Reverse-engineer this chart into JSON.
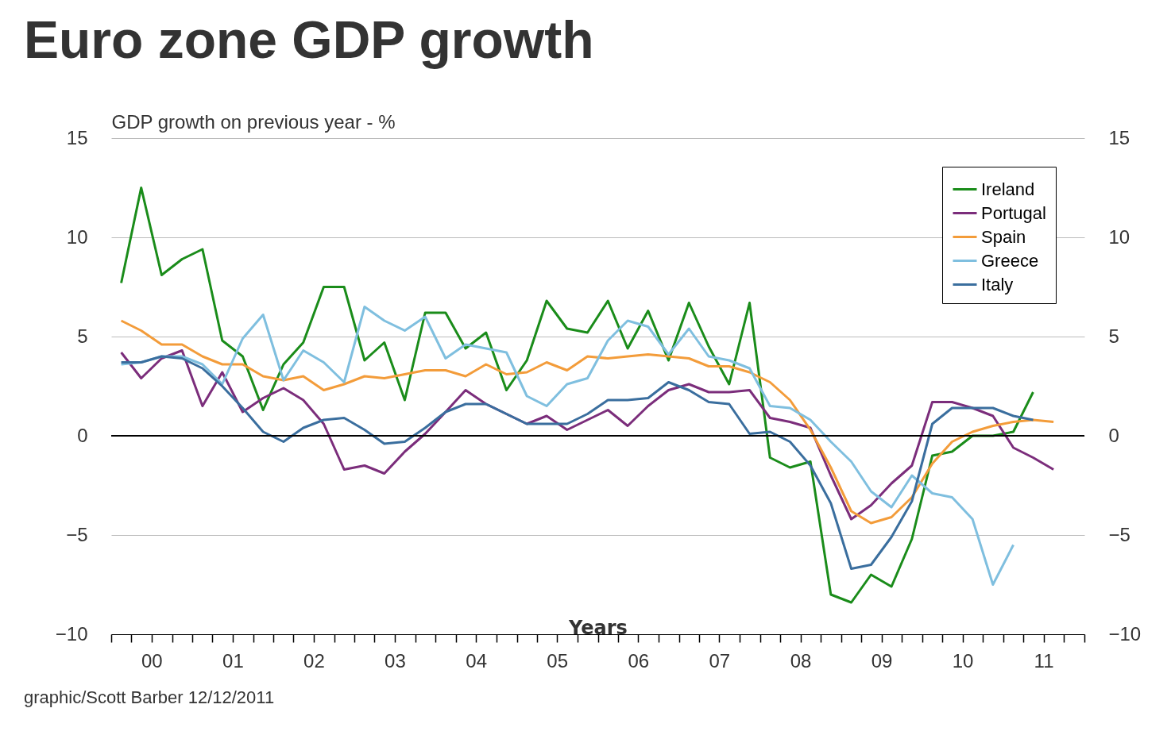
{
  "chart_data": {
    "type": "line",
    "title": "Euro zone GDP growth",
    "ylabel": "GDP growth on previous year - %",
    "xlabel": "Years",
    "annotations": [
      "graphic/Scott Barber 12/12/2011"
    ],
    "x": [
      "2000-02-15",
      "2000-05-15",
      "2000-08-15",
      "2000-11-15",
      "2001-02-15",
      "2001-05-15",
      "2001-08-15",
      "2001-11-15",
      "2002-02-15",
      "2002-05-15",
      "2002-08-15",
      "2002-11-15",
      "2003-02-15",
      "2003-05-15",
      "2003-08-15",
      "2003-11-15",
      "2004-02-15",
      "2004-05-15",
      "2004-08-15",
      "2004-11-15",
      "2005-02-15",
      "2005-05-15",
      "2005-08-15",
      "2005-11-15",
      "2006-02-15",
      "2006-05-15",
      "2006-08-15",
      "2006-11-15",
      "2007-02-15",
      "2007-05-15",
      "2007-08-15",
      "2007-11-15",
      "2008-02-15",
      "2008-05-15",
      "2008-08-15",
      "2008-11-15",
      "2009-02-15",
      "2009-05-15",
      "2009-08-15",
      "2009-11-15",
      "2010-02-15",
      "2010-05-15",
      "2010-08-15",
      "2010-11-15",
      "2011-02-15",
      "2011-05-15",
      "2011-08-15"
    ],
    "xlim": [
      "2000-01-01",
      "2012-01-01"
    ],
    "xticks": [
      {
        "value": "2000-01-01",
        "label": null
      },
      {
        "value": "2000-04-01",
        "label": null
      },
      {
        "value": "2000-07-01",
        "label": "00"
      },
      {
        "value": "2000-10-01",
        "label": null
      },
      {
        "value": "2001-01-01",
        "label": null
      },
      {
        "value": "2001-04-01",
        "label": null
      },
      {
        "value": "2001-07-01",
        "label": "01"
      },
      {
        "value": "2001-10-01",
        "label": null
      },
      {
        "value": "2002-01-01",
        "label": null
      },
      {
        "value": "2002-04-01",
        "label": null
      },
      {
        "value": "2002-07-01",
        "label": "02"
      },
      {
        "value": "2002-10-01",
        "label": null
      },
      {
        "value": "2003-01-01",
        "label": null
      },
      {
        "value": "2003-04-01",
        "label": null
      },
      {
        "value": "2003-07-01",
        "label": "03"
      },
      {
        "value": "2003-10-01",
        "label": null
      },
      {
        "value": "2004-01-01",
        "label": null
      },
      {
        "value": "2004-04-01",
        "label": null
      },
      {
        "value": "2004-07-01",
        "label": "04"
      },
      {
        "value": "2004-10-01",
        "label": null
      },
      {
        "value": "2005-01-01",
        "label": null
      },
      {
        "value": "2005-04-01",
        "label": null
      },
      {
        "value": "2005-07-01",
        "label": "05"
      },
      {
        "value": "2005-10-01",
        "label": null
      },
      {
        "value": "2006-01-01",
        "label": null
      },
      {
        "value": "2006-04-01",
        "label": null
      },
      {
        "value": "2006-07-01",
        "label": "06"
      },
      {
        "value": "2006-10-01",
        "label": null
      },
      {
        "value": "2007-01-01",
        "label": null
      },
      {
        "value": "2007-04-01",
        "label": null
      },
      {
        "value": "2007-07-01",
        "label": "07"
      },
      {
        "value": "2007-10-01",
        "label": null
      },
      {
        "value": "2008-01-01",
        "label": null
      },
      {
        "value": "2008-04-01",
        "label": null
      },
      {
        "value": "2008-07-01",
        "label": "08"
      },
      {
        "value": "2008-10-01",
        "label": null
      },
      {
        "value": "2009-01-01",
        "label": null
      },
      {
        "value": "2009-04-01",
        "label": null
      },
      {
        "value": "2009-07-01",
        "label": "09"
      },
      {
        "value": "2009-10-01",
        "label": null
      },
      {
        "value": "2010-01-01",
        "label": null
      },
      {
        "value": "2010-04-01",
        "label": null
      },
      {
        "value": "2010-07-01",
        "label": "10"
      },
      {
        "value": "2010-10-01",
        "label": null
      },
      {
        "value": "2011-01-01",
        "label": null
      },
      {
        "value": "2011-04-01",
        "label": null
      },
      {
        "value": "2011-07-01",
        "label": "11"
      },
      {
        "value": "2011-10-01",
        "label": null
      },
      {
        "value": "2012-01-01",
        "label": null
      }
    ],
    "ylim": [
      -10,
      15
    ],
    "yticks": [
      -10,
      -5,
      0,
      5,
      10,
      15
    ],
    "y2lim": [
      -10,
      15
    ],
    "y2ticks": [
      -10,
      -5,
      0,
      5,
      10,
      15
    ],
    "grid": "y",
    "legend": "top right",
    "line_style": "solid",
    "ref_lines": [
      {
        "axis": "y",
        "value": 0,
        "color": "#000000"
      }
    ],
    "series": [
      {
        "name": "Ireland",
        "color": "#1a8c1a",
        "values": [
          7.7,
          12.5,
          8.1,
          8.9,
          9.4,
          4.8,
          4.0,
          1.3,
          3.6,
          4.7,
          7.5,
          7.5,
          3.8,
          4.7,
          1.8,
          6.2,
          6.2,
          4.4,
          5.2,
          2.3,
          3.8,
          6.8,
          5.4,
          5.2,
          6.8,
          4.4,
          6.3,
          3.8,
          6.7,
          4.5,
          2.6,
          6.7,
          -1.1,
          -1.6,
          -1.3,
          -8.0,
          -8.4,
          -7.0,
          -7.6,
          -5.2,
          -1.0,
          -0.8,
          0.0,
          0.0,
          0.2,
          2.2,
          null
        ]
      },
      {
        "name": "Portugal",
        "color": "#7b2d7b",
        "values": [
          4.2,
          2.9,
          3.9,
          4.3,
          1.5,
          3.2,
          1.2,
          1.9,
          2.4,
          1.8,
          0.6,
          -1.7,
          -1.5,
          -1.9,
          -0.8,
          0.1,
          1.2,
          2.3,
          1.6,
          1.1,
          0.6,
          1.0,
          0.3,
          0.8,
          1.3,
          0.5,
          1.5,
          2.3,
          2.6,
          2.2,
          2.2,
          2.3,
          0.9,
          0.7,
          0.4,
          -2.0,
          -4.2,
          -3.5,
          -2.4,
          -1.5,
          1.7,
          1.7,
          1.4,
          1.0,
          -0.6,
          -1.1,
          -1.7
        ]
      },
      {
        "name": "Spain",
        "color": "#f39c3a",
        "values": [
          5.8,
          5.3,
          4.6,
          4.6,
          4.0,
          3.6,
          3.6,
          3.0,
          2.8,
          3.0,
          2.3,
          2.6,
          3.0,
          2.9,
          3.1,
          3.3,
          3.3,
          3.0,
          3.6,
          3.1,
          3.2,
          3.7,
          3.3,
          4.0,
          3.9,
          4.0,
          4.1,
          4.0,
          3.9,
          3.5,
          3.5,
          3.2,
          2.7,
          1.8,
          0.3,
          -1.6,
          -3.8,
          -4.4,
          -4.1,
          -3.1,
          -1.4,
          -0.3,
          0.2,
          0.5,
          0.7,
          0.8,
          0.7
        ]
      },
      {
        "name": "Greece",
        "color": "#7fbfdf",
        "values": [
          3.6,
          3.7,
          4.0,
          4.0,
          3.6,
          2.6,
          4.9,
          6.1,
          2.8,
          4.3,
          3.7,
          2.7,
          6.5,
          5.8,
          5.3,
          6.0,
          3.9,
          4.6,
          4.4,
          4.2,
          2.0,
          1.5,
          2.6,
          2.9,
          4.8,
          5.8,
          5.5,
          4.1,
          5.4,
          4.0,
          3.8,
          3.4,
          1.5,
          1.4,
          0.8,
          -0.3,
          -1.3,
          -2.8,
          -3.6,
          -2.0,
          -2.9,
          -3.1,
          -4.2,
          -7.5,
          -5.5,
          null,
          null
        ]
      },
      {
        "name": "Italy",
        "color": "#3a6e9e",
        "values": [
          3.7,
          3.7,
          4.0,
          3.9,
          3.4,
          2.5,
          1.4,
          0.2,
          -0.3,
          0.4,
          0.8,
          0.9,
          0.3,
          -0.4,
          -0.3,
          0.4,
          1.2,
          1.6,
          1.6,
          1.1,
          0.6,
          0.6,
          0.6,
          1.1,
          1.8,
          1.8,
          1.9,
          2.7,
          2.3,
          1.7,
          1.6,
          0.1,
          0.2,
          -0.3,
          -1.5,
          -3.4,
          -6.7,
          -6.5,
          -5.1,
          -3.3,
          0.6,
          1.4,
          1.4,
          1.4,
          1.0,
          0.8,
          null
        ]
      }
    ]
  }
}
